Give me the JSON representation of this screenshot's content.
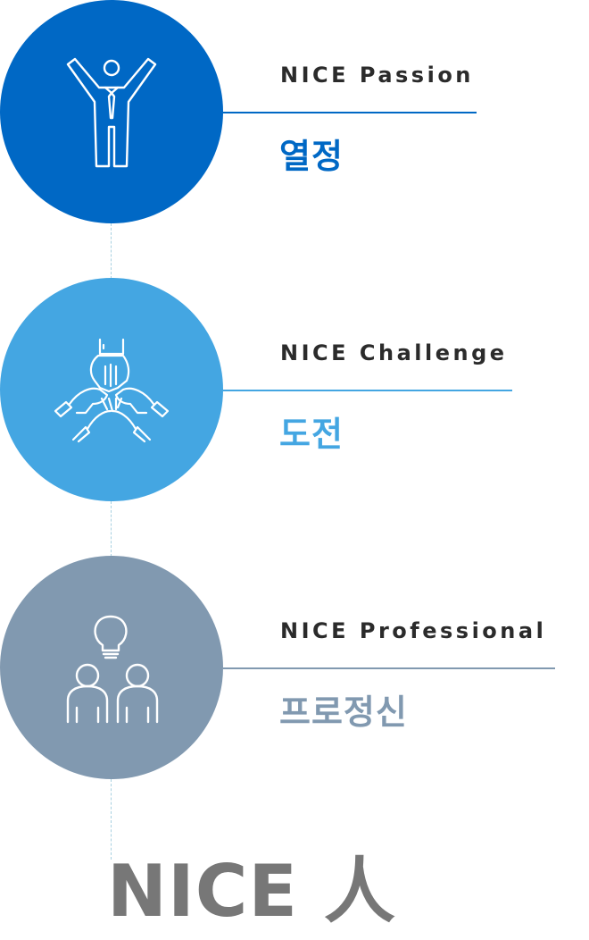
{
  "colors": {
    "passion": "#0068c5",
    "challenge": "#44a6e2",
    "professional": "#8199b0",
    "connector": "#a8d0e0",
    "footer": "#777777"
  },
  "values": [
    {
      "english": "NICE Passion",
      "korean": "열정",
      "icon": "person-arms-raised-icon"
    },
    {
      "english": "NICE Challenge",
      "korean": "도전",
      "icon": "stacked-hands-icon"
    },
    {
      "english": "NICE Professional",
      "korean": "프로정신",
      "icon": "people-with-lightbulb-icon"
    }
  ],
  "footer": {
    "title": "NICE 人"
  }
}
